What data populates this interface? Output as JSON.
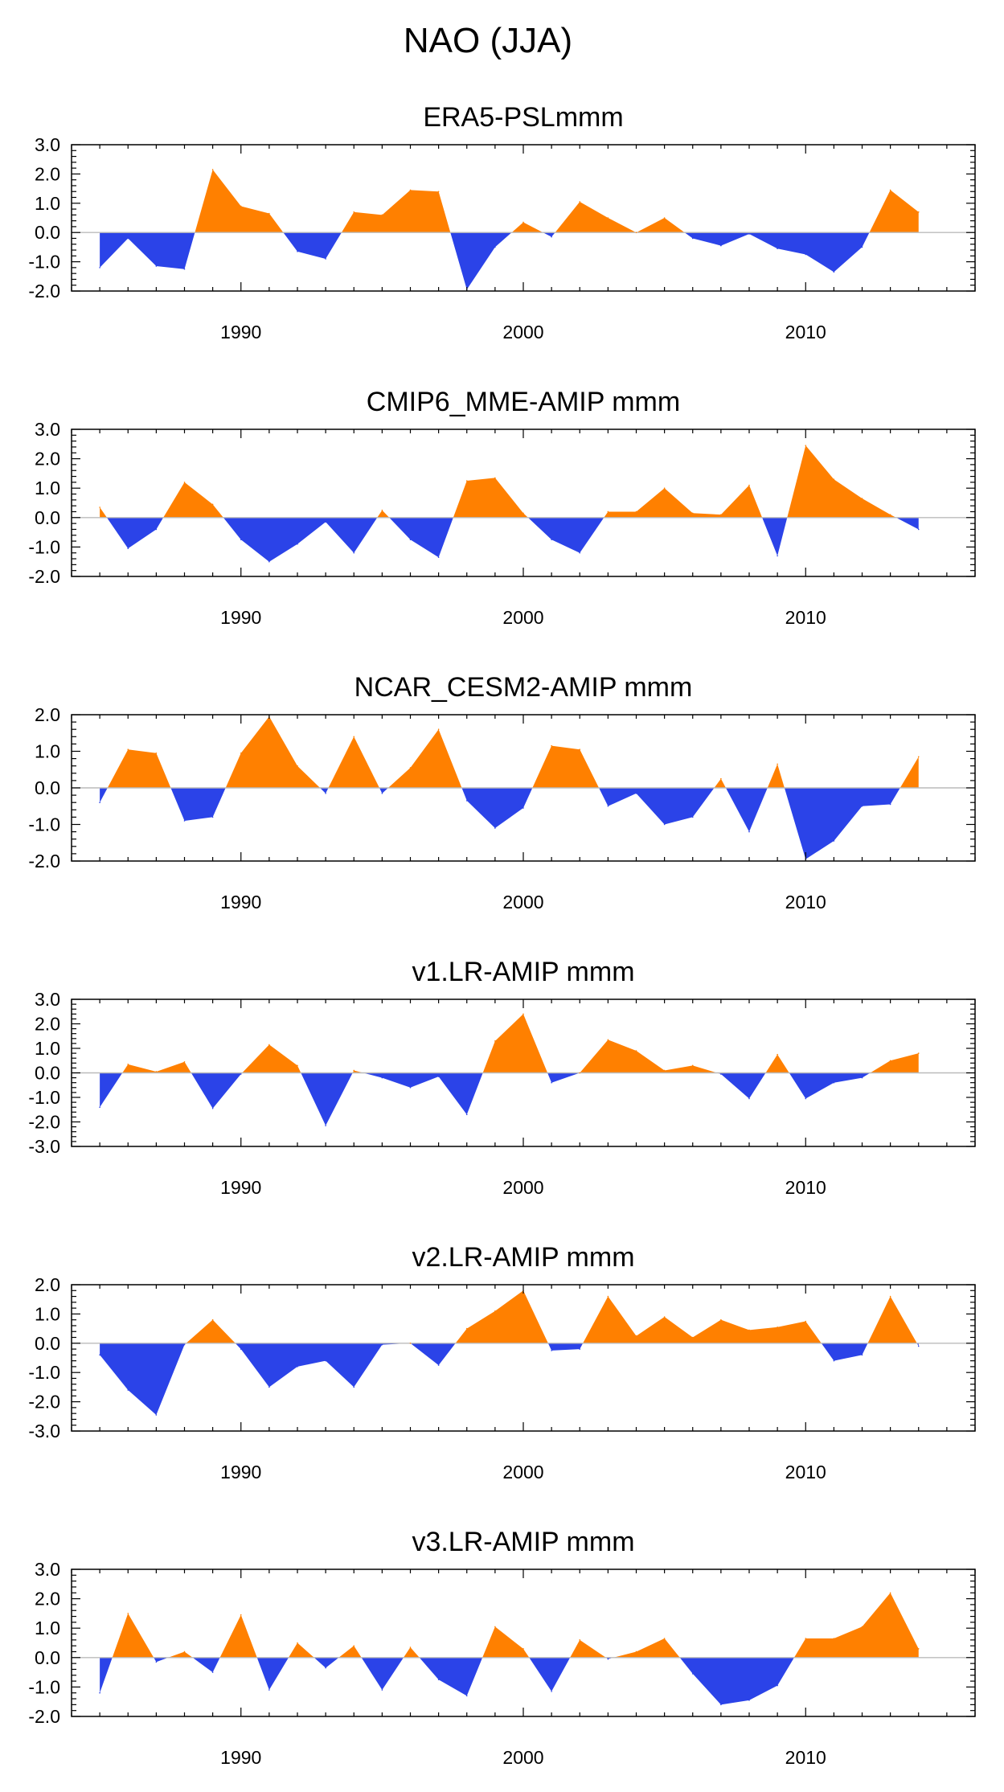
{
  "figure": {
    "title": "NAO (JJA)"
  },
  "colors": {
    "positive": "#ff8000",
    "negative": "#2b43e8",
    "axis": "#000000",
    "zero_line": "#bbbbbb",
    "background": "#ffffff"
  },
  "chart_data": [
    {
      "type": "area",
      "title": "ERA5-PSLmmm",
      "xlabel": "",
      "ylabel": "",
      "xlim": [
        1984,
        2016
      ],
      "ylim": [
        -2.0,
        3.0
      ],
      "yticks": [
        "3.0",
        "2.0",
        "1.0",
        "0.0",
        "-1.0",
        "-2.0"
      ],
      "xticks": [
        "1990",
        "2000",
        "2010"
      ],
      "x_start": 1985,
      "x_end": 2014,
      "values": [
        -1.2,
        -0.2,
        -1.15,
        -1.25,
        2.15,
        0.9,
        0.65,
        -0.65,
        -0.9,
        0.7,
        0.6,
        1.45,
        1.4,
        -1.95,
        -0.5,
        0.35,
        -0.15,
        1.05,
        0.5,
        0.0,
        0.5,
        -0.2,
        -0.45,
        -0.05,
        -0.55,
        -0.75,
        -1.35,
        -0.5,
        1.45,
        0.7
      ]
    },
    {
      "type": "area",
      "title": "CMIP6_MME-AMIP  mmm",
      "xlabel": "",
      "ylabel": "",
      "xlim": [
        1984,
        2016
      ],
      "ylim": [
        -2.0,
        3.0
      ],
      "yticks": [
        "3.0",
        "2.0",
        "1.0",
        "0.0",
        "-1.0",
        "-2.0"
      ],
      "xticks": [
        "1990",
        "2000",
        "2010"
      ],
      "x_start": 1985,
      "x_end": 2014,
      "values": [
        0.35,
        -1.05,
        -0.4,
        1.2,
        0.45,
        -0.75,
        -1.5,
        -0.9,
        -0.15,
        -1.2,
        0.25,
        -0.75,
        -1.35,
        1.25,
        1.35,
        0.15,
        -0.75,
        -1.2,
        0.2,
        0.2,
        1.0,
        0.15,
        0.1,
        1.1,
        -1.3,
        2.45,
        1.3,
        0.65,
        0.1,
        -0.4
      ]
    },
    {
      "type": "area",
      "title": "NCAR_CESM2-AMIP  mmm",
      "xlabel": "",
      "ylabel": "",
      "xlim": [
        1984,
        2016
      ],
      "ylim": [
        -2.0,
        2.0
      ],
      "yticks": [
        "2.0",
        "1.0",
        "0.0",
        "-1.0",
        "-2.0"
      ],
      "xticks": [
        "1990",
        "2000",
        "2010"
      ],
      "x_start": 1985,
      "x_end": 2014,
      "values": [
        -0.4,
        1.05,
        0.95,
        -0.9,
        -0.8,
        0.95,
        1.95,
        0.6,
        -0.15,
        1.4,
        -0.15,
        0.55,
        1.6,
        -0.35,
        -1.1,
        -0.55,
        1.15,
        1.05,
        -0.5,
        -0.15,
        -1.0,
        -0.8,
        0.25,
        -1.2,
        0.65,
        -1.95,
        -1.45,
        -0.5,
        -0.45,
        0.85
      ]
    },
    {
      "type": "area",
      "title": "v1.LR-AMIP  mmm",
      "xlabel": "",
      "ylabel": "",
      "xlim": [
        1984,
        2016
      ],
      "ylim": [
        -3.0,
        3.0
      ],
      "yticks": [
        "3.0",
        "2.0",
        "1.0",
        "0.0",
        "-1.0",
        "-2.0",
        "-3.0"
      ],
      "xticks": [
        "1990",
        "2000",
        "2010"
      ],
      "x_start": 1985,
      "x_end": 2014,
      "values": [
        -1.4,
        0.35,
        0.05,
        0.45,
        -1.45,
        -0.05,
        1.15,
        0.3,
        -2.15,
        0.1,
        -0.2,
        -0.6,
        -0.15,
        -1.7,
        1.3,
        2.4,
        -0.4,
        0.0,
        1.35,
        0.9,
        0.1,
        0.3,
        -0.05,
        -1.05,
        0.75,
        -1.05,
        -0.4,
        -0.2,
        0.5,
        0.8
      ]
    },
    {
      "type": "area",
      "title": "v2.LR-AMIP  mmm",
      "xlabel": "",
      "ylabel": "",
      "xlim": [
        1984,
        2016
      ],
      "ylim": [
        -3.0,
        2.0
      ],
      "yticks": [
        "2.0",
        "1.0",
        "0.0",
        "-1.0",
        "-2.0",
        "-3.0"
      ],
      "xticks": [
        "1990",
        "2000",
        "2010"
      ],
      "x_start": 1985,
      "x_end": 2014,
      "values": [
        -0.4,
        -1.6,
        -2.45,
        -0.05,
        0.8,
        -0.2,
        -1.5,
        -0.8,
        -0.6,
        -1.5,
        -0.05,
        0.0,
        -0.75,
        0.5,
        1.1,
        1.8,
        -0.25,
        -0.2,
        1.6,
        0.25,
        0.9,
        0.2,
        0.8,
        0.45,
        0.55,
        0.75,
        -0.6,
        -0.4,
        1.6,
        -0.1
      ]
    },
    {
      "type": "area",
      "title": "v3.LR-AMIP  mmm",
      "xlabel": "",
      "ylabel": "",
      "xlim": [
        1984,
        2016
      ],
      "ylim": [
        -2.0,
        3.0
      ],
      "yticks": [
        "3.0",
        "2.0",
        "1.0",
        "0.0",
        "-1.0",
        "-2.0"
      ],
      "xticks": [
        "1990",
        "2000",
        "2010"
      ],
      "x_start": 1985,
      "x_end": 2014,
      "values": [
        -1.2,
        1.5,
        -0.15,
        0.2,
        -0.5,
        1.45,
        -1.1,
        0.5,
        -0.35,
        0.4,
        -1.1,
        0.35,
        -0.75,
        -1.3,
        1.05,
        0.3,
        -1.15,
        0.6,
        -0.05,
        0.2,
        0.65,
        -0.55,
        -1.6,
        -1.45,
        -0.95,
        0.65,
        0.65,
        1.05,
        2.2,
        0.3
      ]
    }
  ]
}
